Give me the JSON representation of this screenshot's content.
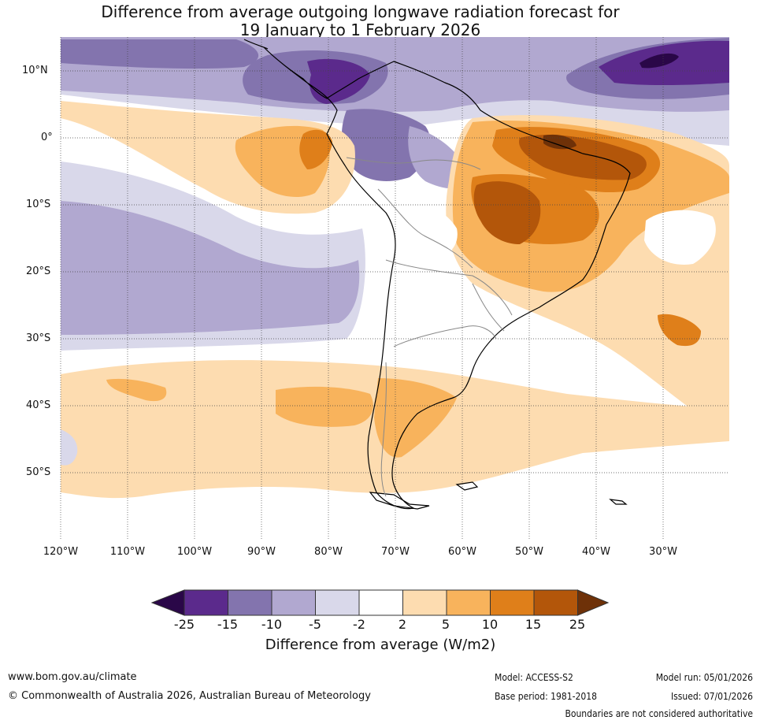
{
  "title": {
    "line1": "Difference from average outgoing longwave radiation forecast for",
    "line2": "19 January to 1 February 2026"
  },
  "map": {
    "region": "South America",
    "lat_labels": [
      "10°N",
      "0°",
      "10°S",
      "20°S",
      "30°S",
      "40°S",
      "50°S"
    ],
    "lon_labels": [
      "120°W",
      "110°W",
      "100°W",
      "90°W",
      "80°W",
      "70°W",
      "60°W",
      "50°W",
      "40°W",
      "30°W"
    ]
  },
  "colorbar": {
    "ticks": [
      "-25",
      "-15",
      "-10",
      "-5",
      "-2",
      "2",
      "5",
      "10",
      "15",
      "25"
    ],
    "colors": [
      "#2a0748",
      "#5b2a8c",
      "#8374ae",
      "#b1a8d0",
      "#d9d8ea",
      "#ffffff",
      "#fddcb0",
      "#f8b35c",
      "#df7f1a",
      "#b3560a",
      "#6e3108"
    ],
    "label": "Difference from average (W/m2)"
  },
  "footer": {
    "url": "www.bom.gov.au/climate",
    "copyright": "© Commonwealth of Australia 2026, Australian Bureau of Meteorology",
    "model": "Model: ACCESS-S2",
    "base_period": "Base period: 1981-2018",
    "model_run": "Model run: 05/01/2026",
    "issued": "Issued: 07/01/2026",
    "disclaimer": "Boundaries are not considered authoritative"
  }
}
